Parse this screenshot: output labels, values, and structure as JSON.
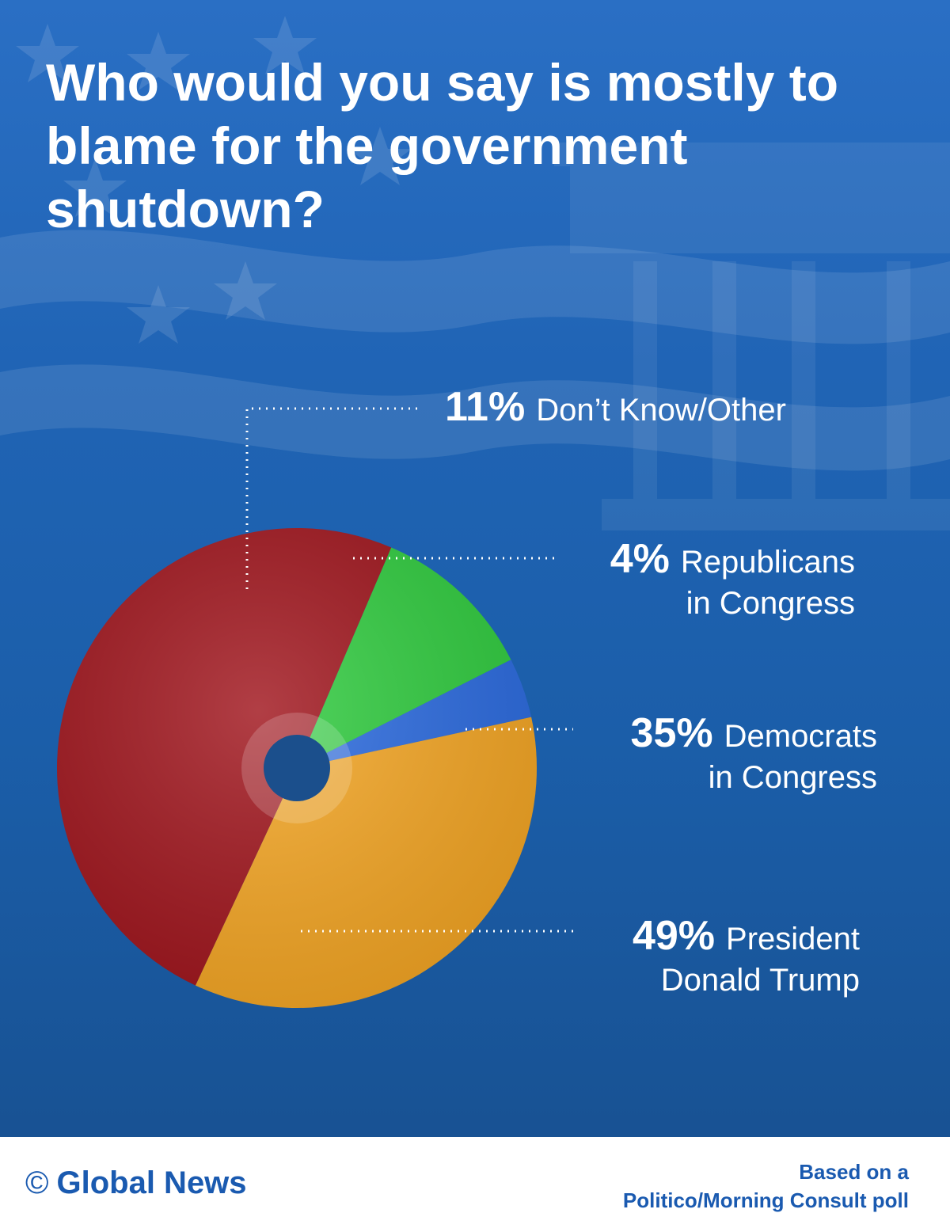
{
  "title": "Who would you say is mostly to blame for the government shutdown?",
  "chart_data": {
    "type": "pie",
    "title": "Who would you say is mostly to blame for the government shutdown?",
    "slices": [
      {
        "pct_label": "49%",
        "label_line1": "President",
        "label_line2": "Donald Trump",
        "value": 49,
        "color": "#a0141c"
      },
      {
        "pct_label": "11%",
        "label_line1": "Don’t Know/Other",
        "label_line2": "",
        "value": 11,
        "color": "#2fcc3e"
      },
      {
        "pct_label": "4%",
        "label_line1": "Republicans",
        "label_line2": "in Congress",
        "value": 4,
        "color": "#2a6ae0"
      },
      {
        "pct_label": "35%",
        "label_line1": "Democrats",
        "label_line2": "in Congress",
        "value": 35,
        "color": "#f5a623"
      }
    ]
  },
  "footer": {
    "copyright_symbol": "©",
    "brand": "Global News",
    "source_line1": "Based on a",
    "source_line2": "Politico/Morning Consult poll"
  },
  "colors": {
    "background": "#1f62b3",
    "footer_text": "#1a5ab0"
  }
}
